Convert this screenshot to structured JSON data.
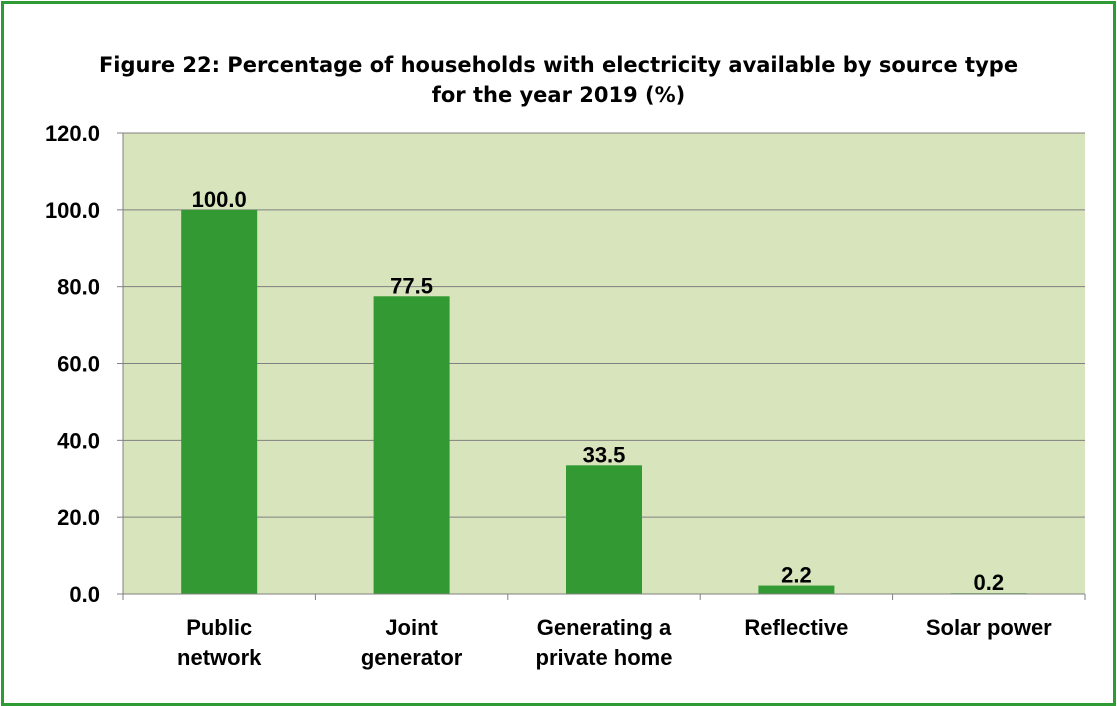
{
  "chart_data": {
    "type": "bar",
    "title_lines": [
      "Figure 22: Percentage of households with electricity available by source type",
      "for the year 2019 (%)"
    ],
    "categories": [
      [
        "Public",
        "network"
      ],
      [
        "Joint",
        "generator"
      ],
      [
        "Generating a",
        "private home"
      ],
      [
        "Reflective"
      ],
      [
        "Solar power"
      ]
    ],
    "values": [
      100.0,
      77.5,
      33.5,
      2.2,
      0.2
    ],
    "value_labels": [
      "100.0",
      "77.5",
      "33.5",
      "2.2",
      "0.2"
    ],
    "ylim": [
      0,
      120
    ],
    "yticks": [
      0,
      20,
      40,
      60,
      80,
      100,
      120
    ],
    "ytick_labels": [
      "0.0",
      "20.0",
      "40.0",
      "60.0",
      "80.0",
      "100.0",
      "120.0"
    ],
    "grid": true,
    "colors": {
      "bar": "#339933",
      "plot_background": "#d8e4bc",
      "border": "#2e9b34",
      "gridline": "#808080"
    }
  }
}
